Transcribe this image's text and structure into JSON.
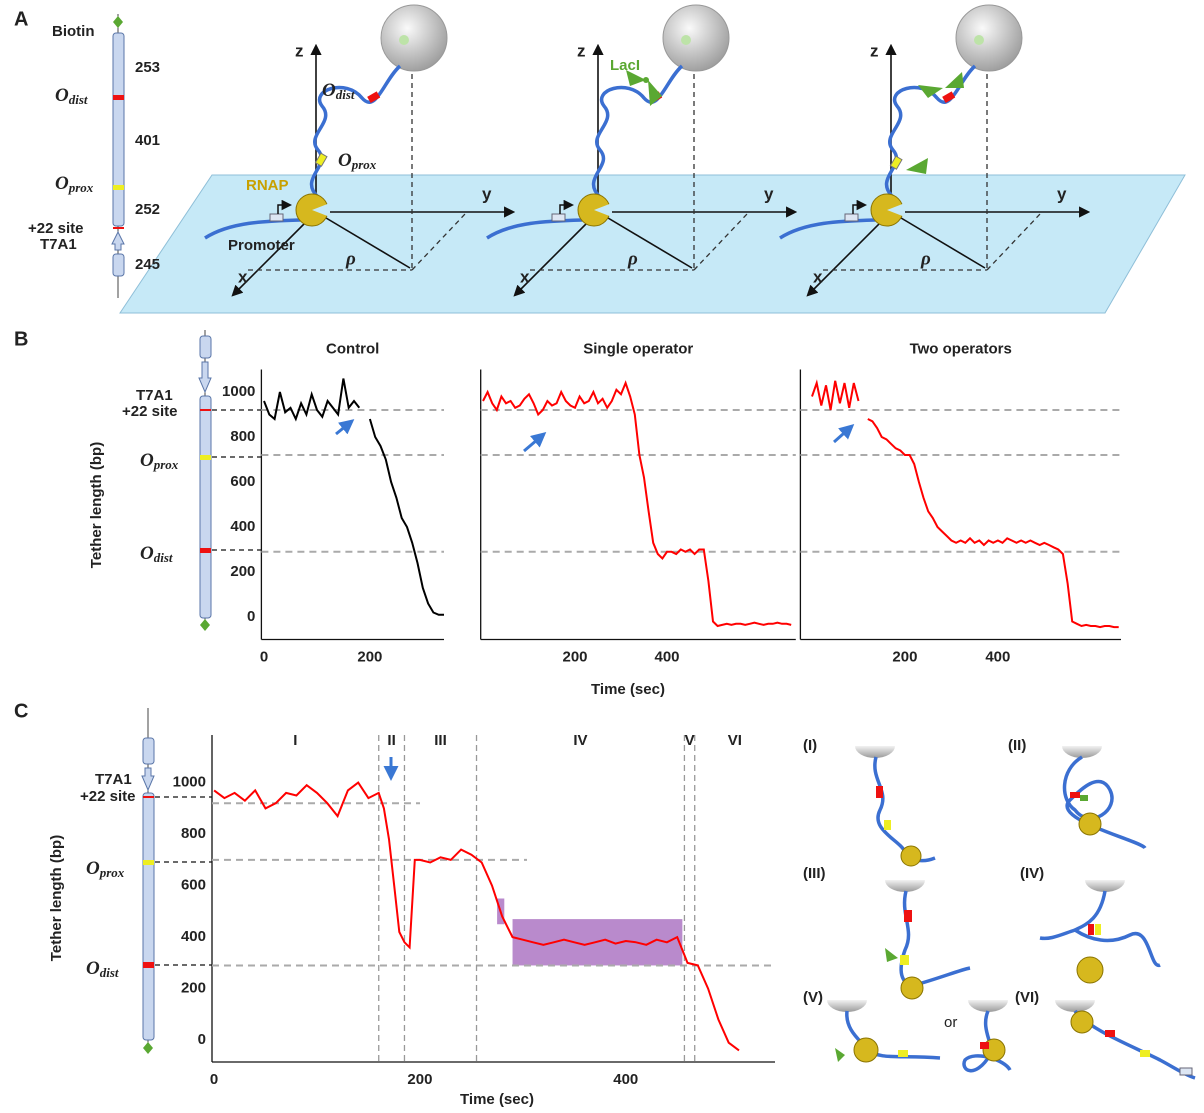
{
  "panel_labels": [
    "A",
    "B",
    "C"
  ],
  "panel_a": {
    "construct": {
      "biotin": "Biotin",
      "lengths": [
        "253",
        "401",
        "252",
        "245"
      ],
      "site": "+22 site",
      "promoter": "T7A1"
    },
    "o_dist": {
      "main": "O",
      "sub": "dist"
    },
    "o_prox": {
      "main": "O",
      "sub": "prox"
    },
    "axes": {
      "x": "x",
      "y": "y",
      "z": "z",
      "rho": "ρ"
    },
    "rnap": "RNAP",
    "promoter": "Promoter",
    "laci": "LacI"
  },
  "chart_data": [
    {
      "type": "line",
      "title": "Control",
      "y_label": "Tether length (bp)",
      "color": "#000000",
      "x": [
        0,
        10,
        20,
        30,
        40,
        50,
        60,
        70,
        80,
        90,
        100,
        110,
        120,
        130,
        140,
        150,
        160,
        170,
        180,
        190,
        200,
        210,
        220,
        230,
        240,
        250,
        260,
        270,
        280,
        290,
        300,
        310,
        320,
        330,
        340
      ],
      "values": [
        960,
        900,
        880,
        1000,
        910,
        930,
        880,
        950,
        900,
        990,
        920,
        890,
        960,
        930,
        900,
        1060,
        930,
        960,
        930,
        null,
        880,
        800,
        760,
        700,
        600,
        530,
        440,
        400,
        330,
        240,
        130,
        60,
        20,
        10,
        10
      ],
      "xlim": [
        -5,
        340
      ],
      "ylim": [
        -100,
        1100
      ],
      "xticks": [
        0,
        200
      ],
      "yticks": [
        0,
        200,
        400,
        600,
        800,
        1000
      ],
      "ref_lines": [
        920,
        720,
        290
      ]
    },
    {
      "type": "line",
      "title": "Single operator",
      "x_label": "Time (sec)",
      "color": "#ff0000",
      "x": [
        0,
        10,
        20,
        30,
        40,
        50,
        60,
        70,
        80,
        90,
        100,
        110,
        120,
        130,
        140,
        150,
        160,
        170,
        180,
        190,
        200,
        210,
        220,
        230,
        240,
        250,
        260,
        270,
        280,
        290,
        300,
        310,
        320,
        330,
        340,
        350,
        360,
        370,
        380,
        390,
        400,
        410,
        420,
        430,
        440,
        450,
        460,
        470,
        480,
        490,
        500,
        510,
        520,
        530,
        540,
        550,
        560,
        570,
        580,
        590,
        600,
        610,
        620,
        630,
        640,
        650,
        660,
        670
      ],
      "values": [
        960,
        1000,
        950,
        920,
        980,
        950,
        960,
        930,
        940,
        970,
        990,
        950,
        900,
        920,
        960,
        940,
        950,
        1000,
        960,
        940,
        930,
        980,
        950,
        960,
        1000,
        950,
        970,
        930,
        960,
        1010,
        990,
        1040,
        980,
        900,
        720,
        620,
        470,
        330,
        280,
        260,
        290,
        290,
        280,
        300,
        290,
        300,
        280,
        300,
        300,
        160,
        -20,
        -40,
        -35,
        -30,
        -35,
        -30,
        -30,
        -35,
        -30,
        -25,
        -30,
        -35,
        -30,
        -30,
        -25,
        -30,
        -30,
        -35
      ],
      "xlim": [
        -5,
        680
      ],
      "ylim": [
        -100,
        1100
      ],
      "xticks": [
        200,
        400
      ],
      "ref_lines": [
        920,
        720,
        290
      ]
    },
    {
      "type": "line",
      "title": "Two operators",
      "color": "#ff0000",
      "x": [
        0,
        10,
        20,
        30,
        40,
        50,
        60,
        70,
        80,
        90,
        100,
        110,
        120,
        130,
        140,
        150,
        160,
        170,
        180,
        190,
        200,
        210,
        220,
        230,
        240,
        250,
        260,
        270,
        280,
        290,
        300,
        310,
        320,
        330,
        340,
        350,
        360,
        370,
        380,
        390,
        400,
        410,
        420,
        430,
        440,
        450,
        460,
        470,
        480,
        490,
        500,
        510,
        520,
        530,
        540,
        550,
        560,
        570,
        580,
        590,
        600,
        610,
        620,
        630,
        640,
        650,
        660
      ],
      "values": [
        980,
        1040,
        940,
        1030,
        920,
        1050,
        950,
        1040,
        930,
        1040,
        960,
        null,
        880,
        870,
        840,
        800,
        790,
        770,
        750,
        740,
        720,
        720,
        680,
        600,
        530,
        470,
        440,
        400,
        380,
        360,
        340,
        330,
        340,
        330,
        350,
        330,
        340,
        320,
        340,
        330,
        340,
        330,
        350,
        340,
        330,
        340,
        330,
        340,
        330,
        320,
        330,
        320,
        310,
        300,
        280,
        150,
        -20,
        -30,
        -40,
        -35,
        -40,
        -40,
        -45,
        -40,
        -40,
        -45,
        -45
      ],
      "xlim": [
        -25,
        665
      ],
      "ylim": [
        -100,
        1100
      ],
      "xticks": [
        200,
        400
      ],
      "ref_lines": [
        920,
        720,
        290
      ]
    },
    {
      "type": "line",
      "y_label": "Tether length (bp)",
      "x_label": "Time (sec)",
      "color": "#ff0000",
      "x": [
        0,
        10,
        20,
        30,
        40,
        50,
        60,
        70,
        80,
        90,
        100,
        110,
        120,
        130,
        140,
        150,
        160,
        165,
        170,
        175,
        180,
        185,
        190,
        195,
        200,
        210,
        220,
        230,
        240,
        250,
        260,
        270,
        280,
        290,
        300,
        310,
        320,
        330,
        340,
        350,
        360,
        370,
        380,
        390,
        400,
        410,
        420,
        430,
        440,
        450,
        455,
        460,
        470,
        480,
        490,
        500,
        510
      ],
      "values": [
        970,
        940,
        960,
        930,
        970,
        900,
        920,
        960,
        950,
        990,
        960,
        920,
        870,
        970,
        1000,
        940,
        960,
        900,
        780,
        600,
        420,
        380,
        360,
        700,
        700,
        690,
        710,
        700,
        740,
        720,
        690,
        600,
        480,
        400,
        390,
        380,
        370,
        380,
        390,
        380,
        370,
        380,
        390,
        375,
        385,
        380,
        370,
        390,
        380,
        400,
        350,
        300,
        290,
        200,
        80,
        -10,
        -40
      ],
      "xlim": [
        -2,
        545
      ],
      "ylim": [
        -85,
        1185
      ],
      "xticks": [
        0,
        200,
        400
      ],
      "yticks": [
        0,
        200,
        400,
        600,
        800,
        1000
      ],
      "ref_lines": [
        920,
        700,
        290
      ],
      "region_bounds": [
        160,
        185,
        255,
        457,
        467
      ],
      "regions": [
        "I",
        "II",
        "III",
        "IV",
        "V",
        "VI"
      ],
      "shades": [
        {
          "x": [
            275,
            282
          ],
          "y": [
            450,
            550
          ]
        },
        {
          "x": [
            290,
            455
          ],
          "y": [
            290,
            470
          ]
        }
      ],
      "shade_color": "#9b59b6"
    }
  ],
  "panel_c_states": {
    "labels": [
      "(I)",
      "(II)",
      "(III)",
      "(IV)",
      "(V)",
      "(VI)"
    ],
    "or": "or"
  }
}
